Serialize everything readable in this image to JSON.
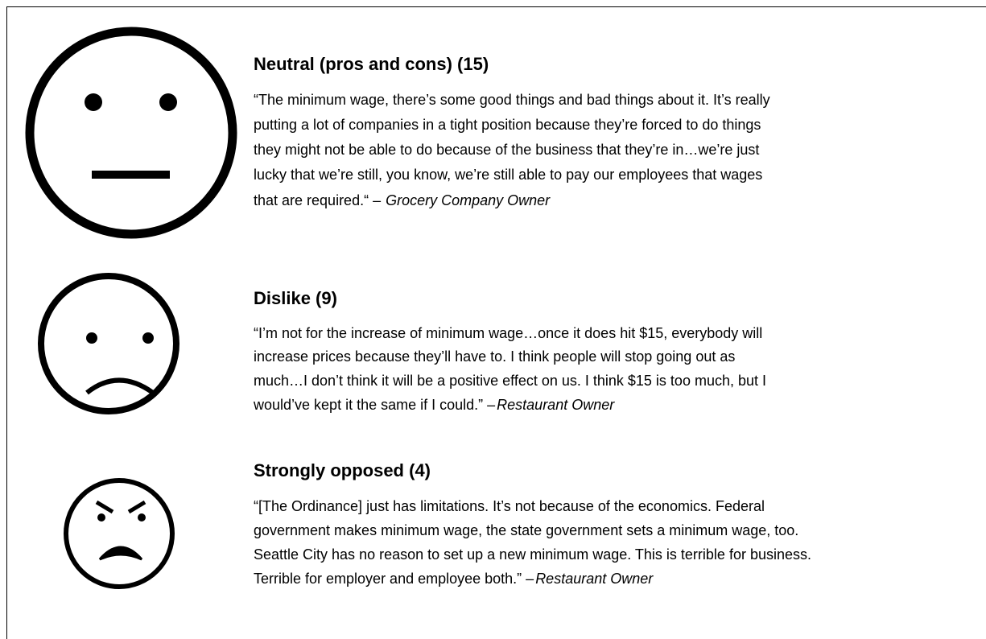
{
  "sections": [
    {
      "heading": "Neutral (pros and cons) (15)",
      "lines": [
        "“The minimum wage, there’s some good things and bad things about it. It’s really",
        "putting a lot of companies in a tight position because they’re forced to do things",
        "they might not be able to do because of the business that they’re in…we’re just",
        "lucky that we’re still, you know, we’re still able to pay our employees that wages",
        "that are required.“ –"
      ],
      "attribution": "Grocery Company Owner"
    },
    {
      "heading": "Dislike (9)",
      "lines": [
        "“I’m not for the increase of minimum wage…once it does hit $15, everybody will",
        "increase prices because they’ll have to. I think people will stop going out as",
        "much…I don’t think it will be a positive effect on us. I think $15 is too much, but I",
        "would’ve kept it the same if I could.” –"
      ],
      "attribution": "Restaurant Owner"
    },
    {
      "heading": "Strongly opposed (4)",
      "lines": [
        "“[The Ordinance] just has limitations. It’s not because of the economics. Federal",
        "government makes minimum wage, the state government sets a minimum wage, too.",
        "Seattle City has no reason to set up a new minimum wage. This is terrible for business.",
        "Terrible for employer and employee both.” –"
      ],
      "attribution": "Restaurant Owner"
    }
  ]
}
